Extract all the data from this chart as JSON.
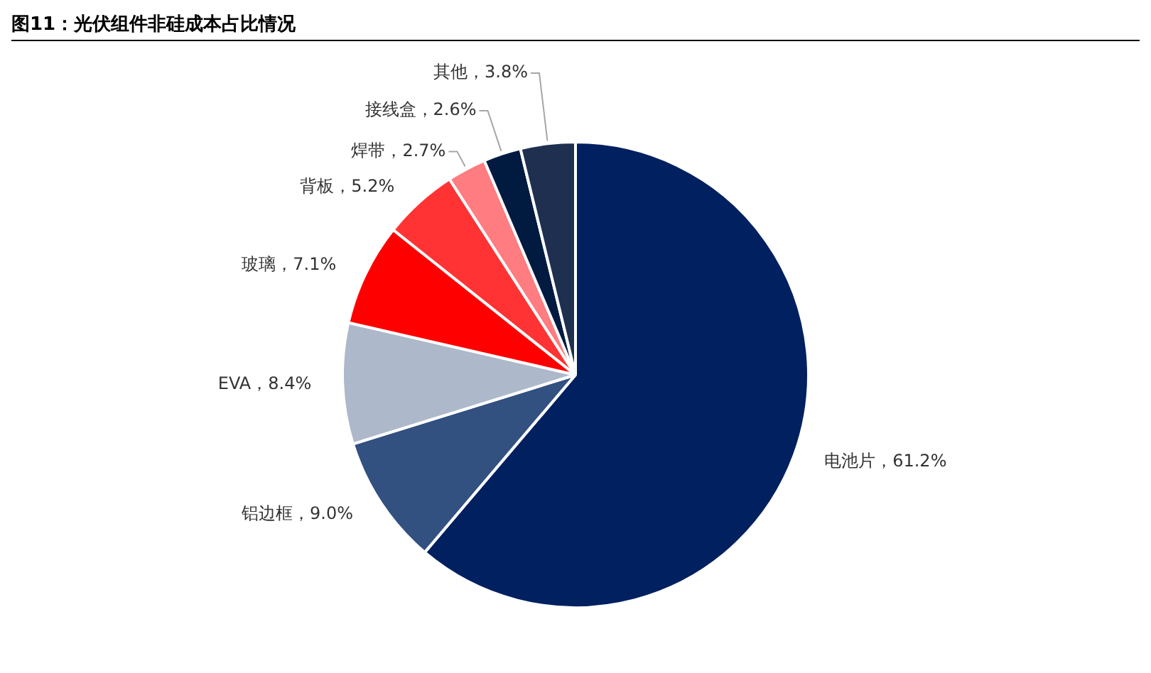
{
  "chart_data": {
    "type": "pie",
    "title": "图11：光伏组件非硅成本占比情况",
    "categories": [
      "电池片",
      "铝边框",
      "EVA",
      "玻璃",
      "背板",
      "焊带",
      "接线盒",
      "其他"
    ],
    "values": [
      61.2,
      9.0,
      8.4,
      7.1,
      5.2,
      2.7,
      2.6,
      3.8
    ],
    "colors": [
      "#002060",
      "#325080",
      "#adb9ca",
      "#ff0000",
      "#ff3333",
      "#ff7c80",
      "#001a40",
      "#1f2f4f"
    ],
    "value_labels": [
      "61.2%",
      "9.0%",
      "8.4%",
      "7.1%",
      "5.2%",
      "2.7%",
      "2.6%",
      "3.8%"
    ],
    "legend": false
  }
}
